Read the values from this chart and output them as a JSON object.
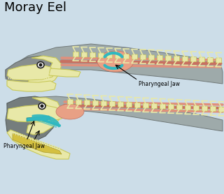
{
  "title": "Moray Eel",
  "title_fontsize": 13,
  "background_color": "#ccdde8",
  "label1": "Pharyngeal Jaw",
  "label2": "Pharyngeal Jaw",
  "bone_color": "#e8e8a8",
  "bone_edge": "#c8c858",
  "muscle_color1": "#e8a090",
  "muscle_color2": "#d08878",
  "jaw_color": "#30b8c0",
  "body_color": "#a8aaaa",
  "body_edge": "#888888",
  "figsize": [
    3.2,
    2.78
  ],
  "dpi": 100
}
